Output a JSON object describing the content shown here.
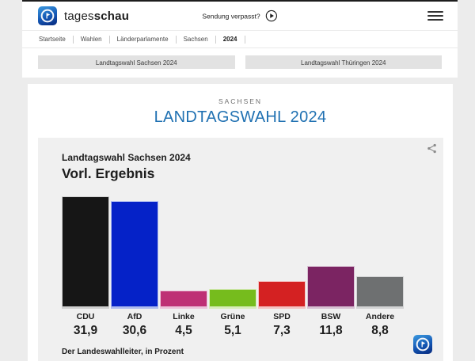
{
  "header": {
    "brand": {
      "regular": "tages",
      "bold": "schau"
    },
    "broadcast_link": "Sendung verpasst?",
    "breadcrumb": [
      "Startseite",
      "Wahlen",
      "Länderparlamente",
      "Sachsen",
      "2024"
    ]
  },
  "section_nav": {
    "buttons": [
      "Landtagswahl Sachsen 2024",
      "Landtagswahl Thüringen 2024"
    ]
  },
  "page": {
    "kicker": "SACHSEN",
    "title": "LANDTAGSWAHL 2024"
  },
  "chart_data": {
    "type": "bar",
    "title": "Landtagswahl Sachsen 2024",
    "subtitle": "Vorl. Ergebnis",
    "source": "Der Landeswahlleiter, in Prozent",
    "unit": "Prozent",
    "categories": [
      "CDU",
      "AfD",
      "Linke",
      "Grüne",
      "SPD",
      "BSW",
      "Andere"
    ],
    "values": [
      31.9,
      30.6,
      4.5,
      5.1,
      7.3,
      11.8,
      8.8
    ],
    "value_labels": [
      "31,9",
      "30,6",
      "4,5",
      "5,1",
      "7,3",
      "11,8",
      "8,8"
    ],
    "bar_colors": [
      "#161616",
      "#0522c8",
      "#be3075",
      "#76bc1d",
      "#d42122",
      "#7b2462",
      "#6e7071"
    ],
    "bar_tint_colors": [
      "#cfcfcf",
      "#aebbef",
      "#ecc3da",
      "#d8ecba",
      "#f4c3c3",
      "#d7c0d2",
      "#d2d3d4"
    ],
    "ylim": [
      0,
      32.6
    ],
    "grid": false,
    "legend": false
  },
  "colors": {
    "accent_blue": "#2071b2",
    "page_bg": "#ececec",
    "card_bg": "#f0f0f0"
  }
}
